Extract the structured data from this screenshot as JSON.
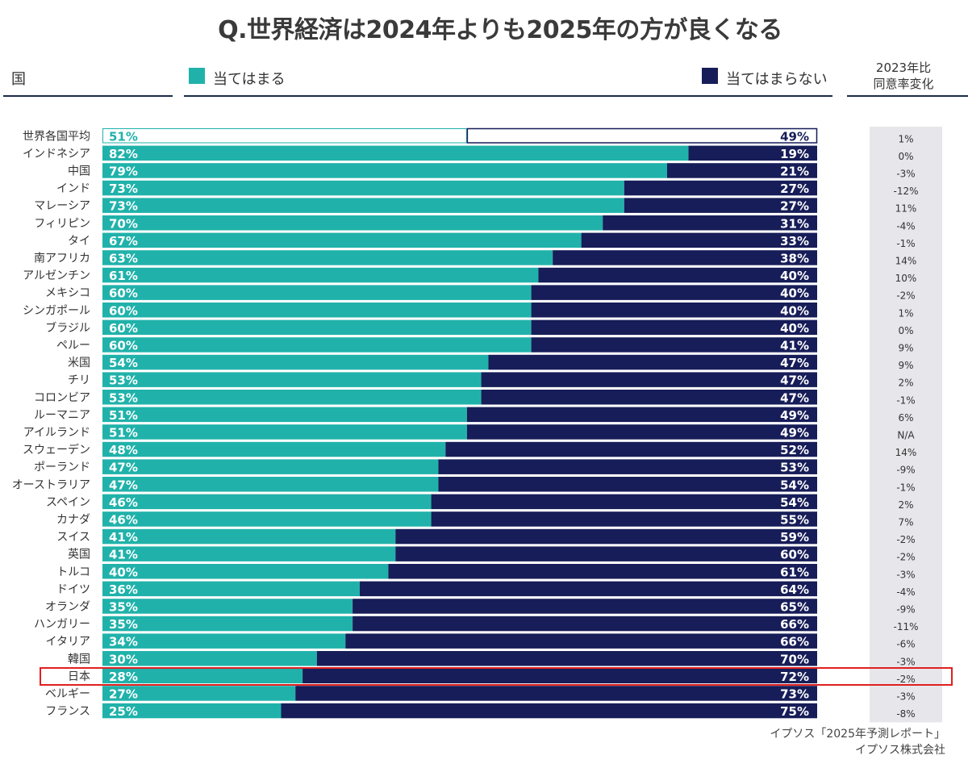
{
  "title": "Q.世界経済は2024年よりも2025年の方が良くなる",
  "header": {
    "country_label": "国",
    "agree_label": "当てはまる",
    "disagree_label": "当てはまらない",
    "change_label_line1": "2023年比",
    "change_label_line2": "同意率変化"
  },
  "colors": {
    "agree": "#20b2aa",
    "disagree": "#171d58",
    "change_bg": "#e6e6eb",
    "highlight": "#e02020"
  },
  "source_line1": "イプソス「2025年予測レポート」",
  "source_line2": "イプソス株式会社",
  "chart_data": {
    "type": "bar",
    "orientation": "horizontal-stacked-100",
    "highlighted_category": "日本",
    "categories": [
      "世界各国平均",
      "インドネシア",
      "中国",
      "インド",
      "マレーシア",
      "フィリピン",
      "タイ",
      "南アフリカ",
      "アルゼンチン",
      "メキシコ",
      "シンガポール",
      "ブラジル",
      "ペルー",
      "米国",
      "チリ",
      "コロンビア",
      "ルーマニア",
      "アイルランド",
      "スウェーデン",
      "ポーランド",
      "オーストラリア",
      "スペイン",
      "カナダ",
      "スイス",
      "英国",
      "トルコ",
      "ドイツ",
      "オランダ",
      "ハンガリー",
      "イタリア",
      "韓国",
      "日本",
      "ベルギー",
      "フランス"
    ],
    "series": [
      {
        "name": "当てはまる",
        "values": [
          51,
          82,
          79,
          73,
          73,
          70,
          67,
          63,
          61,
          60,
          60,
          60,
          60,
          54,
          53,
          53,
          51,
          51,
          48,
          47,
          47,
          46,
          46,
          41,
          41,
          40,
          36,
          35,
          35,
          34,
          30,
          28,
          27,
          25
        ]
      },
      {
        "name": "当てはまらない",
        "values": [
          49,
          19,
          21,
          27,
          27,
          31,
          33,
          38,
          40,
          40,
          40,
          40,
          41,
          47,
          47,
          47,
          49,
          49,
          52,
          53,
          54,
          54,
          55,
          59,
          60,
          61,
          64,
          65,
          66,
          66,
          70,
          72,
          73,
          75
        ]
      }
    ],
    "change_vs_2023": [
      "1%",
      "0%",
      "-3%",
      "-12%",
      "11%",
      "-4%",
      "-1%",
      "14%",
      "10%",
      "-2%",
      "1%",
      "0%",
      "9%",
      "9%",
      "2%",
      "-1%",
      "6%",
      "N/A",
      "14%",
      "-9%",
      "-1%",
      "2%",
      "7%",
      "-2%",
      "-2%",
      "-3%",
      "-4%",
      "-9%",
      "-11%",
      "-6%",
      "-3%",
      "-2%",
      "-3%",
      "-8%"
    ]
  }
}
